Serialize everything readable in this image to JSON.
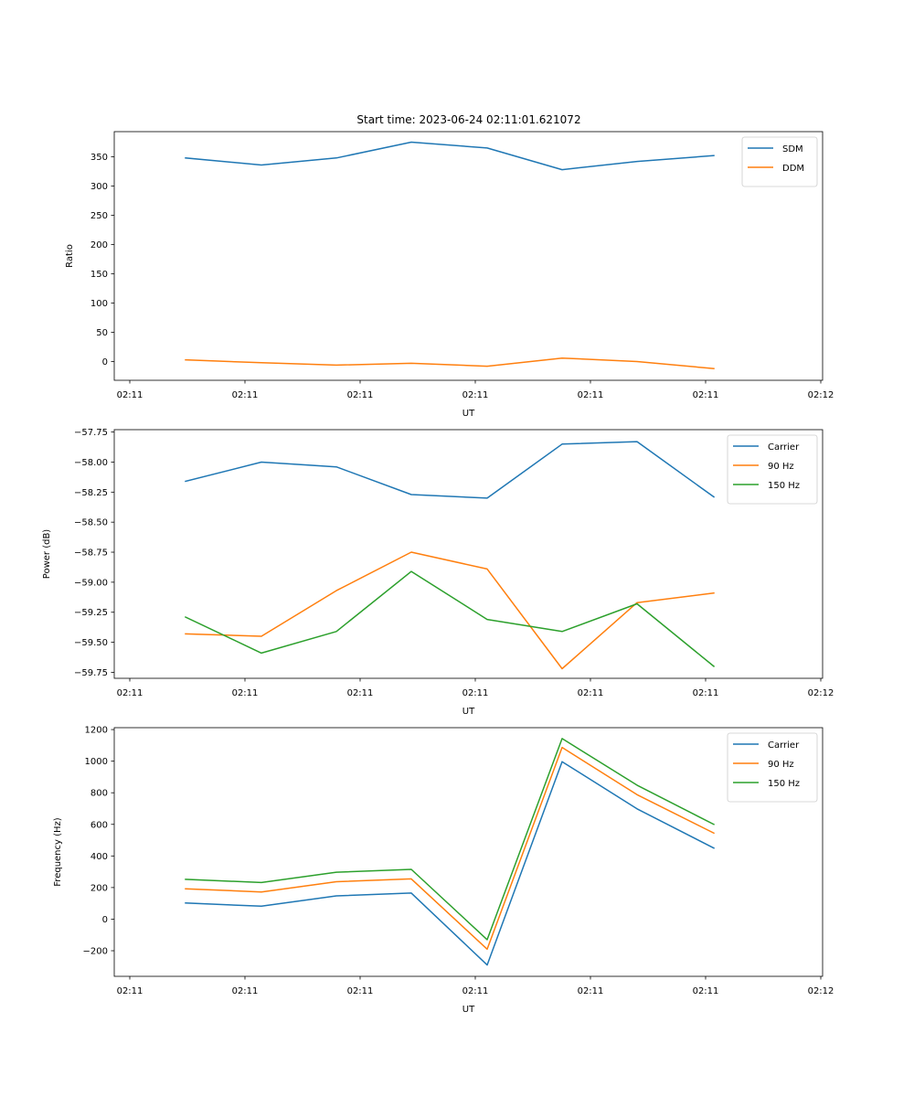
{
  "figure_title": "Start time: 2023-06-24 02:11:01.621072",
  "chart_data": [
    {
      "type": "line",
      "title": "Start time: 2023-06-24 02:11:01.621072",
      "xlabel": "UT",
      "ylabel": "Ratio",
      "x_tick_labels": [
        "02:11",
        "02:11",
        "02:11",
        "02:11",
        "02:11",
        "02:11",
        "02:12"
      ],
      "y_ticks": [
        0,
        50,
        100,
        150,
        200,
        250,
        300,
        350
      ],
      "ylim": [
        -32,
        393
      ],
      "legend_position": "upper right",
      "series": [
        {
          "name": "SDM",
          "color": "#1f77b4",
          "values": [
            348,
            336,
            348,
            375,
            365,
            328,
            342,
            352
          ]
        },
        {
          "name": "DDM",
          "color": "#ff7f0e",
          "values": [
            3,
            -2,
            -6,
            -3,
            -8,
            6,
            0,
            -12
          ]
        }
      ]
    },
    {
      "type": "line",
      "title": "",
      "xlabel": "UT",
      "ylabel": "Power (dB)",
      "x_tick_labels": [
        "02:11",
        "02:11",
        "02:11",
        "02:11",
        "02:11",
        "02:11",
        "02:12"
      ],
      "y_ticks": [
        -59.75,
        -59.5,
        -59.25,
        -59.0,
        -58.75,
        -58.5,
        -58.25,
        -58.0,
        -57.75
      ],
      "y_tick_labels": [
        "−59.75",
        "−59.50",
        "−59.25",
        "−59.00",
        "−58.75",
        "−58.50",
        "−58.25",
        "−58.00",
        "−57.75"
      ],
      "ylim": [
        -59.8,
        -57.73
      ],
      "legend_position": "upper right",
      "series": [
        {
          "name": "Carrier",
          "color": "#1f77b4",
          "values": [
            -58.16,
            -58.0,
            -58.04,
            -58.27,
            -58.3,
            -57.85,
            -57.83,
            -58.29
          ]
        },
        {
          "name": "90 Hz",
          "color": "#ff7f0e",
          "values": [
            -59.43,
            -59.45,
            -59.07,
            -58.75,
            -58.89,
            -59.72,
            -59.17,
            -59.09
          ]
        },
        {
          "name": "150 Hz",
          "color": "#2ca02c",
          "values": [
            -59.29,
            -59.59,
            -59.41,
            -58.91,
            -59.31,
            -59.41,
            -59.18,
            -59.7
          ]
        }
      ]
    },
    {
      "type": "line",
      "title": "",
      "xlabel": "UT",
      "ylabel": "Frequency (Hz)",
      "x_tick_labels": [
        "02:11",
        "02:11",
        "02:11",
        "02:11",
        "02:11",
        "02:11",
        "02:12"
      ],
      "y_ticks": [
        -200,
        0,
        200,
        400,
        600,
        800,
        1000,
        1200
      ],
      "y_tick_labels": [
        "−200",
        "0",
        "200",
        "400",
        "600",
        "800",
        "1000",
        "1200"
      ],
      "ylim": [
        -362,
        1212
      ],
      "legend_position": "upper right",
      "series": [
        {
          "name": "Carrier",
          "color": "#1f77b4",
          "values": [
            102,
            82,
            147,
            165,
            -290,
            997,
            698,
            450
          ]
        },
        {
          "name": "90 Hz",
          "color": "#ff7f0e",
          "values": [
            192,
            172,
            237,
            255,
            -190,
            1087,
            788,
            545
          ]
        },
        {
          "name": "150 Hz",
          "color": "#2ca02c",
          "values": [
            252,
            232,
            297,
            315,
            -130,
            1143,
            848,
            600
          ]
        }
      ]
    }
  ]
}
